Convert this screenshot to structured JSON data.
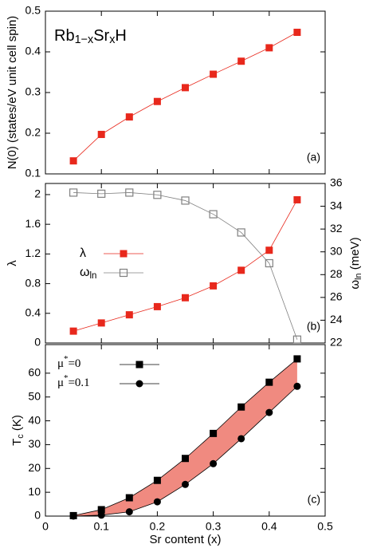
{
  "chart_data": [
    {
      "type": "line",
      "title_parts": [
        {
          "text": "Rb"
        },
        {
          "text": "1−x",
          "sub": true
        },
        {
          "text": "Sr"
        },
        {
          "text": "x",
          "sub": true
        },
        {
          "text": "H"
        }
      ],
      "annotation": "(a)",
      "ylabel": "N(0) (states/eV unit cell spin)",
      "x": [
        0.05,
        0.1,
        0.15,
        0.2,
        0.25,
        0.3,
        0.35,
        0.4,
        0.45
      ],
      "xlim": [
        0,
        0.5
      ],
      "ylim": [
        0.1,
        0.5
      ],
      "yticks": [
        0.1,
        0.2,
        0.3,
        0.4,
        0.5
      ],
      "series": [
        {
          "color": "#e8281c",
          "marker": "square",
          "values": [
            0.132,
            0.197,
            0.24,
            0.278,
            0.312,
            0.345,
            0.377,
            0.41,
            0.448
          ]
        }
      ]
    },
    {
      "type": "line",
      "annotation": "(b)",
      "ylabel": "λ",
      "y2label": [
        {
          "text": "ω"
        },
        {
          "text": "ln",
          "sub": true
        },
        {
          "text": " (meV)"
        }
      ],
      "x": [
        0.05,
        0.1,
        0.15,
        0.2,
        0.25,
        0.3,
        0.35,
        0.4,
        0.45
      ],
      "xlim": [
        0,
        0.5
      ],
      "ylim": [
        0,
        2.15
      ],
      "yticks": [
        0,
        0.4,
        0.8,
        1.2,
        1.6,
        2
      ],
      "y2lim": [
        22,
        36
      ],
      "y2ticks": [
        22,
        24,
        26,
        28,
        30,
        32,
        34,
        36
      ],
      "series": [
        {
          "name": "λ",
          "color": "#e8281c",
          "marker": "square",
          "values": [
            0.16,
            0.27,
            0.38,
            0.49,
            0.61,
            0.77,
            0.98,
            1.25,
            1.93
          ]
        },
        {
          "name": [
            {
              "text": "ω"
            },
            {
              "text": "ln",
              "sub": true
            }
          ],
          "color": "#808080",
          "marker": "open-square",
          "axis": "y2",
          "values": [
            35.2,
            35.1,
            35.2,
            35.0,
            34.5,
            33.3,
            31.7,
            29.0,
            22.3
          ]
        }
      ]
    },
    {
      "type": "line",
      "annotation": "(c)",
      "ylabel": [
        {
          "text": "T"
        },
        {
          "text": "c",
          "sub": true
        },
        {
          "text": " (K)"
        }
      ],
      "xlabel": "Sr content (x)",
      "x": [
        0.05,
        0.1,
        0.15,
        0.2,
        0.25,
        0.3,
        0.35,
        0.4,
        0.45
      ],
      "xlim": [
        0,
        0.5
      ],
      "xticks": [
        0,
        0.1,
        0.2,
        0.3,
        0.4,
        0.5
      ],
      "ylim": [
        0,
        72
      ],
      "yticks": [
        0,
        10,
        20,
        30,
        40,
        50,
        60
      ],
      "fill_between": true,
      "fill_color": "#f08a80",
      "series": [
        {
          "name": [
            {
              "text": "μ"
            },
            {
              "text": "*",
              "sup": true
            },
            {
              "text": "=0"
            }
          ],
          "color": "#000000",
          "marker": "square",
          "values": [
            0.2,
            2.7,
            7.7,
            15,
            24.2,
            34.7,
            45.8,
            56.2,
            66
          ]
        },
        {
          "name": [
            {
              "text": "μ"
            },
            {
              "text": "*",
              "sup": true
            },
            {
              "text": "=0.1"
            }
          ],
          "color": "#000000",
          "marker": "circle",
          "values": [
            0,
            0.4,
            1.8,
            6,
            13.3,
            22,
            32.5,
            43.5,
            54.5
          ]
        }
      ]
    }
  ]
}
